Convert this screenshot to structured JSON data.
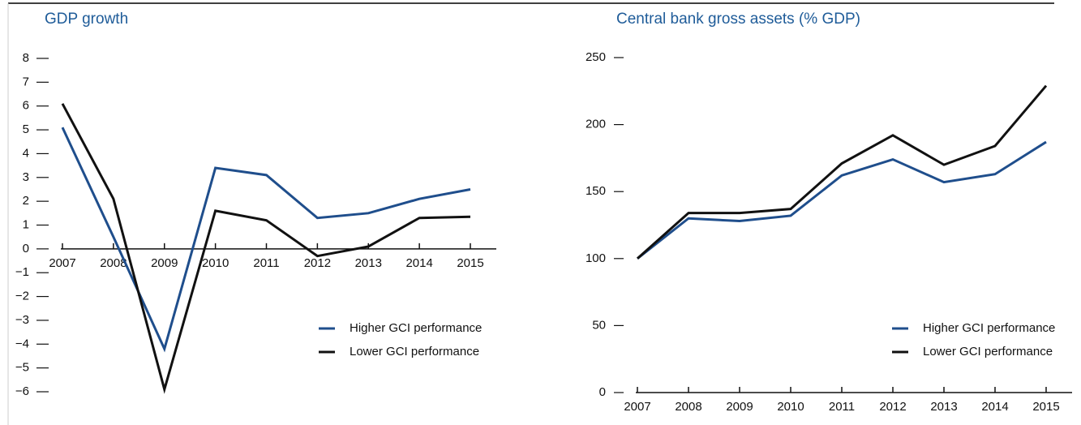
{
  "chart_data": [
    {
      "type": "line",
      "title": "GDP growth",
      "categories": [
        "2007",
        "2008",
        "2009",
        "2010",
        "2011",
        "2012",
        "2013",
        "2014",
        "2015"
      ],
      "series": [
        {
          "name": "Higher GCI performance",
          "color": "#1f4e8c",
          "values": [
            5.1,
            0.5,
            -4.2,
            3.4,
            3.1,
            1.3,
            1.5,
            2.1,
            2.5
          ]
        },
        {
          "name": "Lower GCI performance",
          "color": "#111111",
          "values": [
            6.1,
            2.1,
            -5.9,
            1.6,
            1.2,
            -0.3,
            0.1,
            1.3,
            1.35
          ]
        }
      ],
      "ylim": [
        -6,
        8
      ],
      "yticks": [
        8,
        7,
        6,
        5,
        4,
        3,
        2,
        1,
        0,
        {
          "value": -1,
          "label": "−1"
        },
        {
          "value": -2,
          "label": "−2"
        },
        {
          "value": -3,
          "label": "−3"
        },
        {
          "value": -4,
          "label": "−4"
        },
        {
          "value": -5,
          "label": "−5"
        },
        {
          "value": -6,
          "label": "−6"
        }
      ]
    },
    {
      "type": "line",
      "title": "Central bank gross assets (% GDP)",
      "categories": [
        "2007",
        "2008",
        "2009",
        "2010",
        "2011",
        "2012",
        "2013",
        "2014",
        "2015"
      ],
      "series": [
        {
          "name": "Higher GCI performance",
          "color": "#1f4e8c",
          "values": [
            100,
            130,
            128,
            132,
            162,
            174,
            157,
            163,
            187
          ]
        },
        {
          "name": "Lower GCI performance",
          "color": "#111111",
          "values": [
            100,
            134,
            134,
            137,
            171,
            192,
            170,
            184,
            229
          ]
        }
      ],
      "ylim": [
        0,
        250
      ],
      "yticks": [
        0,
        50,
        100,
        150,
        200,
        250
      ]
    }
  ]
}
